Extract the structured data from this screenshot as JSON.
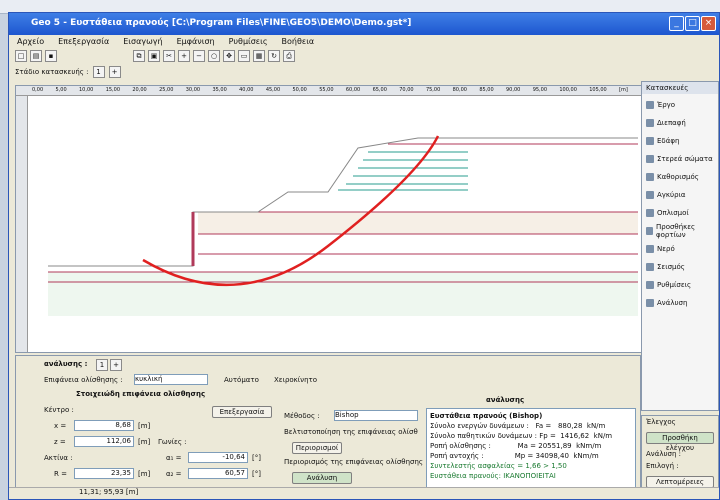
{
  "window": {
    "title": "Geo 5 - Ευστάθεια πρανούς [C:\\Program Files\\FINE\\GEO5\\DEMO\\Demo.gst*]"
  },
  "menu": [
    "Αρχείο",
    "Επεξεργασία",
    "Εισαγωγή",
    "Εμφάνιση",
    "Ρυθμίσεις",
    "Βοήθεια"
  ],
  "toolbar2": {
    "label": "Στάδιο κατασκευής :"
  },
  "ruler": [
    "0,00",
    "5,00",
    "10,00",
    "15,00",
    "20,00",
    "25,00",
    "30,00",
    "35,00",
    "40,00",
    "45,00",
    "50,00",
    "55,00",
    "60,00",
    "65,00",
    "70,00",
    "75,00",
    "80,00",
    "85,00",
    "90,00",
    "95,00",
    "100,00",
    "105,00"
  ],
  "ruler_unit": "[m]",
  "sidebar": {
    "title": "Κατασκευές",
    "items": [
      "Έργο",
      "Διεπαφή",
      "Εδάφη",
      "Στερεά σώματα",
      "Καθορισμός",
      "Αγκύρια",
      "Οπλισμοί",
      "Προσθήκες φορτίων",
      "Νερό",
      "Σεισμός",
      "Ρυθμίσεις",
      "Ανάλυση"
    ]
  },
  "analysis": {
    "tab_label": "ανάλυσης :",
    "surface_label": "Επιφάνεια ολίσθησης :",
    "surface_value": "κυκλική",
    "opt1": "Αυτόματο",
    "opt2": "Χειροκίνητο",
    "params_title": "Στοιχειώδη επιφάνεια ολίσθησης",
    "center_label": "Κέντρο :",
    "x_label": "x =",
    "x_value": "8,68",
    "x_unit": "[m]",
    "z_label": "z =",
    "z_value": "112,06",
    "z_unit": "[m]",
    "radius_label": "Ακτίνα :",
    "r_label": "R =",
    "r_value": "23,35",
    "r_unit": "[m]",
    "angles_label": "Γωνίες :",
    "a1_label": "α₁ =",
    "a1_value": "-10,64",
    "a1_unit": "[°]",
    "a2_label": "α₂ =",
    "a2_value": "60,57",
    "a2_unit": "[°]",
    "edit_btn": "Επεξεργασία",
    "method_label": "Μέθοδος :",
    "method_value": "Bishop",
    "chk1": "Βελτιστοποίηση της επιφάνειας ολίσθ",
    "restrict_btn": "Περιορισμοί",
    "chk2": "Περιορισμός της επιφάνειας ολίσθησης",
    "analyze_btn": "Ανάλυση",
    "results_header": "ανάλυσης",
    "res_title": "Ευστάθεια πρανούς (Bishop)",
    "res_lines": [
      "Σύνολο ενεργών δυνάμεων :   Fa =   880,28  kN/m",
      "Σύνολο παθητικών δυνάμεων : Fp =  1416,62  kN/m",
      "Ροπή ολίσθησης :            Ma = 20551,89  kNm/m",
      "Ροπή αντοχής :              Mp = 34098,40  kNm/m",
      "Συντελεστής ασφαλείας = 1,66 > 1,50",
      "Ευστάθεια πρανούς: ΙΚΑΝΟΠΟΙΕΙΤΑΙ"
    ]
  },
  "rightbottom": {
    "title": "Έλεγχος",
    "btn1": "Προσθήκη ελέγχου",
    "l1": "Ανάλυση :",
    "l2": "Επιλογή :",
    "btn2": "Λεπτομέρειες"
  },
  "status": {
    "coords": "11,31; 95,93 [m]"
  },
  "colors": {
    "slip": "#e02020",
    "layer": "#b03a5a",
    "geo": "#2a9d8f"
  }
}
